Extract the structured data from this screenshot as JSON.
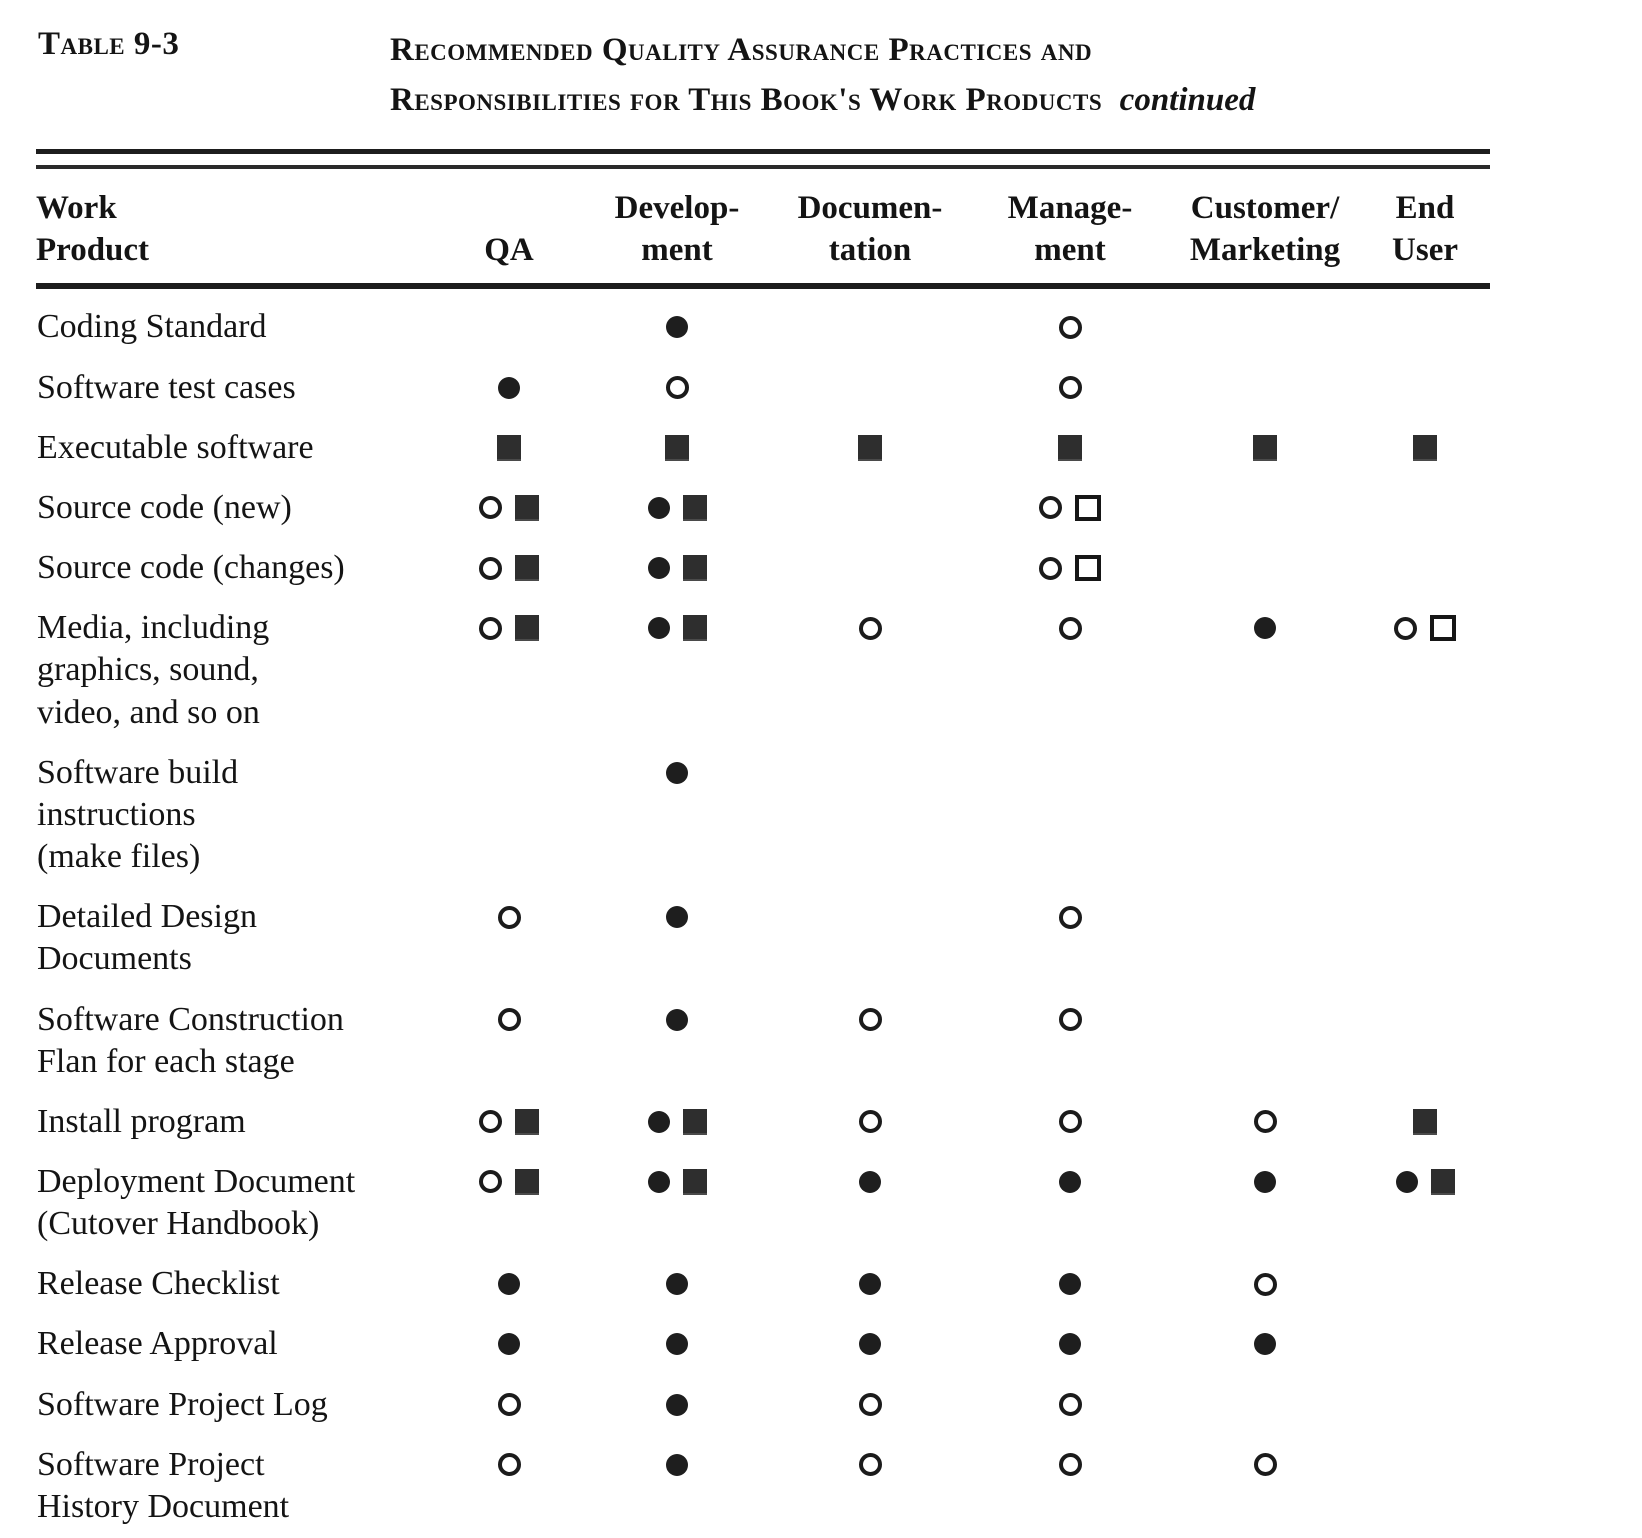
{
  "colors": {
    "ink": "#141414",
    "paper": "#ffffff",
    "square_fill": "#2e2e2e"
  },
  "header": {
    "table_label": "Table 9-3",
    "title_line1": "Recommended Quality Assurance Practices and",
    "title_line2": "Responsibilities for This Book's Work Products",
    "continued": "continued"
  },
  "table": {
    "columns": [
      {
        "id": "work_product",
        "line1": "Work",
        "line2": "Product"
      },
      {
        "id": "qa",
        "line1": "",
        "line2": "QA"
      },
      {
        "id": "development",
        "line1": "Develop-",
        "line2": "ment"
      },
      {
        "id": "documentation",
        "line1": "Documen-",
        "line2": "tation"
      },
      {
        "id": "management",
        "line1": "Manage-",
        "line2": "ment"
      },
      {
        "id": "customer_marketing",
        "line1": "Customer/",
        "line2": "Marketing"
      },
      {
        "id": "end_user",
        "line1": "End",
        "line2": "User"
      }
    ],
    "symbol_names": [
      "filled-circle",
      "open-circle",
      "filled-square",
      "open-square"
    ],
    "rows": [
      {
        "label_lines": [
          "Coding Standard"
        ],
        "cells": {
          "qa": [],
          "development": [
            "filled-circle"
          ],
          "documentation": [],
          "management": [
            "open-circle"
          ],
          "customer_marketing": [],
          "end_user": []
        }
      },
      {
        "label_lines": [
          "Software test cases"
        ],
        "cells": {
          "qa": [
            "filled-circle"
          ],
          "development": [
            "open-circle"
          ],
          "documentation": [],
          "management": [
            "open-circle"
          ],
          "customer_marketing": [],
          "end_user": []
        }
      },
      {
        "label_lines": [
          "Executable software"
        ],
        "cells": {
          "qa": [
            "filled-square"
          ],
          "development": [
            "filled-square"
          ],
          "documentation": [
            "filled-square"
          ],
          "management": [
            "filled-square"
          ],
          "customer_marketing": [
            "filled-square"
          ],
          "end_user": [
            "filled-square"
          ]
        }
      },
      {
        "label_lines": [
          "Source code (new)"
        ],
        "cells": {
          "qa": [
            "open-circle",
            "filled-square"
          ],
          "development": [
            "filled-circle",
            "filled-square"
          ],
          "documentation": [],
          "management": [
            "open-circle",
            "open-square"
          ],
          "customer_marketing": [],
          "end_user": []
        }
      },
      {
        "label_lines": [
          "Source code (changes)"
        ],
        "cells": {
          "qa": [
            "open-circle",
            "filled-square"
          ],
          "development": [
            "filled-circle",
            "filled-square"
          ],
          "documentation": [],
          "management": [
            "open-circle",
            "open-square"
          ],
          "customer_marketing": [],
          "end_user": []
        }
      },
      {
        "label_lines": [
          "Media, including",
          "graphics, sound,",
          "video, and so on"
        ],
        "cells": {
          "qa": [
            "open-circle",
            "filled-square"
          ],
          "development": [
            "filled-circle",
            "filled-square"
          ],
          "documentation": [
            "open-circle"
          ],
          "management": [
            "open-circle"
          ],
          "customer_marketing": [
            "filled-circle"
          ],
          "end_user": [
            "open-circle",
            "open-square"
          ]
        }
      },
      {
        "label_lines": [
          "Software  build",
          "instructions",
          "(make files)"
        ],
        "cells": {
          "qa": [],
          "development": [
            "filled-circle"
          ],
          "documentation": [],
          "management": [],
          "customer_marketing": [],
          "end_user": []
        }
      },
      {
        "label_lines": [
          "Detailed Design",
          "Documents"
        ],
        "cells": {
          "qa": [
            "open-circle"
          ],
          "development": [
            "filled-circle"
          ],
          "documentation": [],
          "management": [
            "open-circle"
          ],
          "customer_marketing": [],
          "end_user": []
        }
      },
      {
        "label_lines": [
          "Software  Construction",
          "Flan for each stage"
        ],
        "cells": {
          "qa": [
            "open-circle"
          ],
          "development": [
            "filled-circle"
          ],
          "documentation": [
            "open-circle"
          ],
          "management": [
            "open-circle"
          ],
          "customer_marketing": [],
          "end_user": []
        }
      },
      {
        "label_lines": [
          "Install program"
        ],
        "cells": {
          "qa": [
            "open-circle",
            "filled-square"
          ],
          "development": [
            "filled-circle",
            "filled-square"
          ],
          "documentation": [
            "open-circle"
          ],
          "management": [
            "open-circle"
          ],
          "customer_marketing": [
            "open-circle"
          ],
          "end_user": [
            "filled-square"
          ]
        }
      },
      {
        "label_lines": [
          "Deployment Document",
          "(Cutover  Handbook)"
        ],
        "cells": {
          "qa": [
            "open-circle",
            "filled-square"
          ],
          "development": [
            "filled-circle",
            "filled-square"
          ],
          "documentation": [
            "filled-circle"
          ],
          "management": [
            "filled-circle"
          ],
          "customer_marketing": [
            "filled-circle"
          ],
          "end_user": [
            "filled-circle",
            "filled-square"
          ]
        }
      },
      {
        "label_lines": [
          "Release  Checklist"
        ],
        "cells": {
          "qa": [
            "filled-circle"
          ],
          "development": [
            "filled-circle"
          ],
          "documentation": [
            "filled-circle"
          ],
          "management": [
            "filled-circle"
          ],
          "customer_marketing": [
            "open-circle"
          ],
          "end_user": []
        }
      },
      {
        "label_lines": [
          "Release  Approval"
        ],
        "cells": {
          "qa": [
            "filled-circle"
          ],
          "development": [
            "filled-circle"
          ],
          "documentation": [
            "filled-circle"
          ],
          "management": [
            "filled-circle"
          ],
          "customer_marketing": [
            "filled-circle"
          ],
          "end_user": []
        }
      },
      {
        "label_lines": [
          "Software Project Log"
        ],
        "cells": {
          "qa": [
            "open-circle"
          ],
          "development": [
            "filled-circle"
          ],
          "documentation": [
            "open-circle"
          ],
          "management": [
            "open-circle"
          ],
          "customer_marketing": [],
          "end_user": []
        }
      },
      {
        "label_lines": [
          "Software Project",
          "History Document"
        ],
        "cells": {
          "qa": [
            "open-circle"
          ],
          "development": [
            "filled-circle"
          ],
          "documentation": [
            "open-circle"
          ],
          "management": [
            "open-circle"
          ],
          "customer_marketing": [
            "open-circle"
          ],
          "end_user": []
        }
      }
    ]
  }
}
